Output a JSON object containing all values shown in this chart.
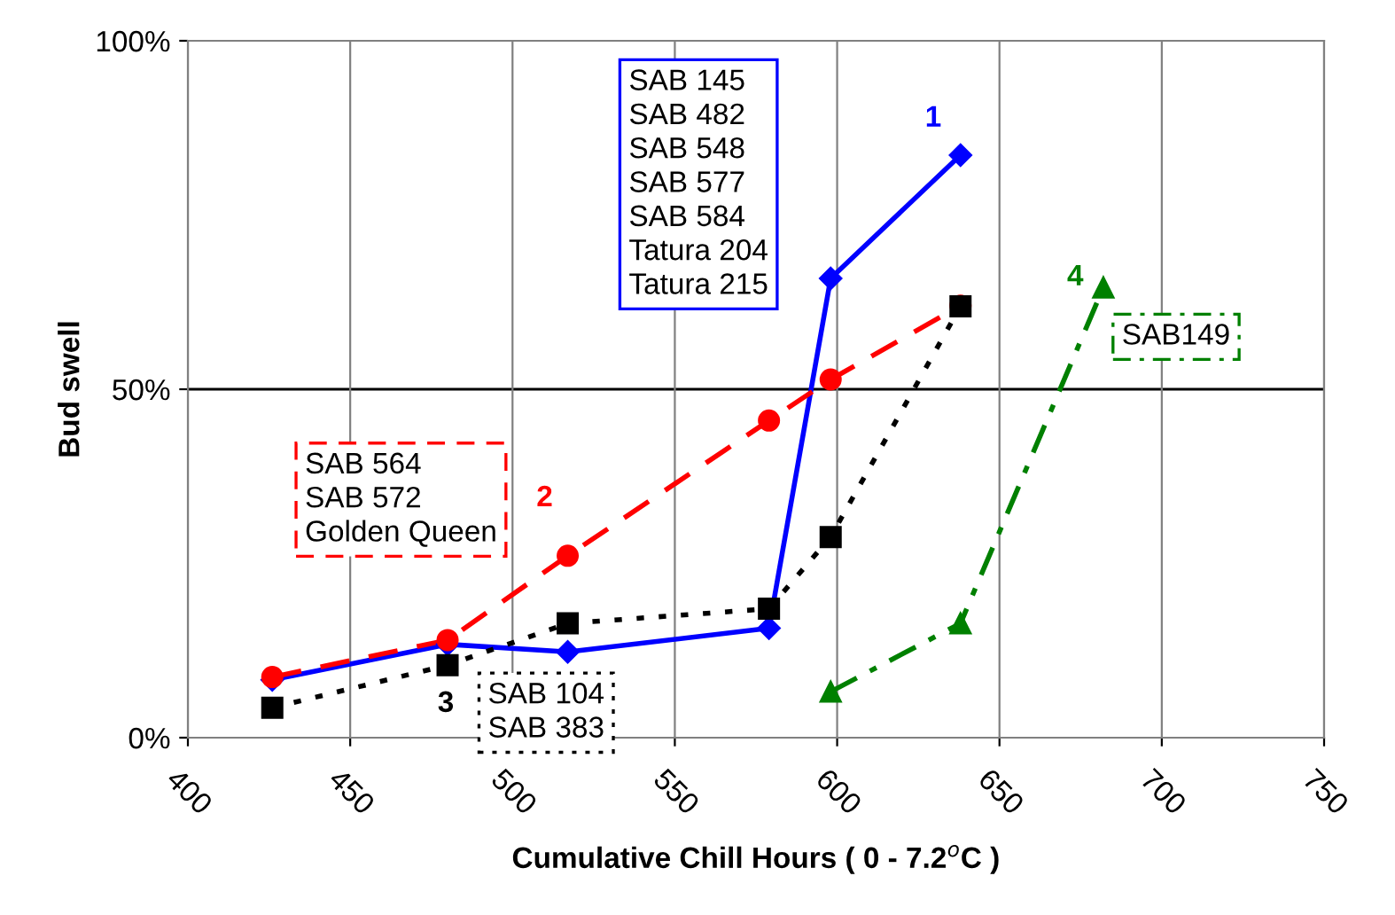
{
  "chart_data": {
    "type": "line",
    "xlabel": "Cumulative Chill Hours ( 0 - 7.2$^{o}$C )",
    "ylabel": "Bud swell",
    "xlim": [
      400,
      750
    ],
    "xticks": [
      400,
      450,
      500,
      550,
      600,
      650,
      700,
      750
    ],
    "ylim": [
      0,
      100
    ],
    "yticks": [
      {
        "value": 0,
        "label": "0%"
      },
      {
        "value": 50,
        "label": "50%"
      },
      {
        "value": 100,
        "label": "100%"
      }
    ],
    "grid": "x",
    "ref_lines": [
      {
        "axis": "y",
        "value": 50,
        "label": null,
        "color": "#000000"
      }
    ],
    "series": [
      {
        "name": "1",
        "color": "#0000ff",
        "marker": "diamond",
        "line_style": "solid",
        "x": [
          426,
          480,
          517,
          579,
          598,
          638
        ],
        "values": [
          8.3,
          13.4,
          12.3,
          15.7,
          65.9,
          83.6
        ]
      },
      {
        "name": "2",
        "color": "#ff0000",
        "marker": "circle",
        "line_style": "dashed",
        "x": [
          426,
          480,
          517,
          579,
          598,
          638
        ],
        "values": [
          8.7,
          14.0,
          26.1,
          45.5,
          51.4,
          62.0
        ]
      },
      {
        "name": "3",
        "color": "#000000",
        "marker": "square",
        "line_style": "dotted",
        "x": [
          426,
          480,
          517,
          579,
          598,
          638
        ],
        "values": [
          4.3,
          10.4,
          16.4,
          18.5,
          28.8,
          61.9
        ]
      },
      {
        "name": "4",
        "color": "#008000",
        "marker": "triangle",
        "line_style": "dashdot",
        "x": [
          598,
          638,
          682
        ],
        "values": [
          6.6,
          16.4,
          64.6
        ]
      }
    ],
    "annotations": [
      "SAB 145\nSAB 482\nSAB 548\nSAB 577\nSAB 584\nTatura 204\nTatura 215",
      "SAB 564\nSAB 572\nGolden Queen",
      "SAB 104\nSAB 383",
      "SAB149"
    ]
  }
}
